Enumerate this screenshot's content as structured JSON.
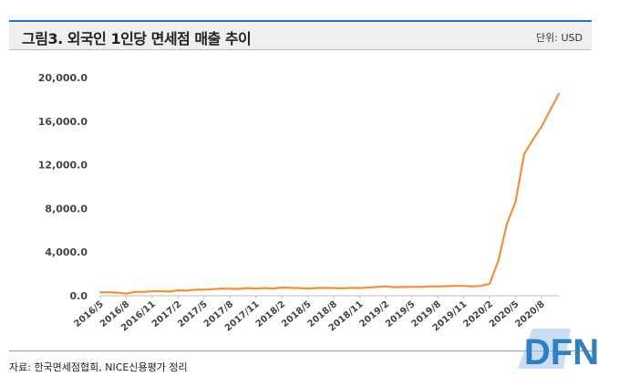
{
  "header": {
    "title": "그림3. 외국인 1인당 면세점 매출 추이",
    "unit": "단위: USD"
  },
  "footer": {
    "source": "자료: 한국면세점협회, NICE신용평가 정리"
  },
  "logo": {
    "text": "DFN",
    "color": "#2f7fc1"
  },
  "chart_data": {
    "type": "line",
    "title": "",
    "xlabel": "",
    "ylabel": "",
    "ylim": [
      0,
      20000
    ],
    "yticks": [
      "0.0",
      "4,000.0",
      "8,000.0",
      "12,000.0",
      "16,000.0",
      "20,000.0"
    ],
    "xtick_labels": [
      "2016/5",
      "2016/8",
      "2016/11",
      "2017/2",
      "2017/5",
      "2017/8",
      "2017/11",
      "2018/2",
      "2018/5",
      "2018/8",
      "2018/11",
      "2019/2",
      "2019/5",
      "2019/8",
      "2019/11",
      "2020/2",
      "2020/5",
      "2020/8"
    ],
    "grid": false,
    "legend": "none",
    "line_color": "#f0913c",
    "series": [
      {
        "x": [
          "2016/5",
          "2016/6",
          "2016/7",
          "2016/8",
          "2016/9",
          "2016/10",
          "2016/11",
          "2016/12",
          "2017/1",
          "2017/2",
          "2017/3",
          "2017/4",
          "2017/5",
          "2017/6",
          "2017/7",
          "2017/8",
          "2017/9",
          "2017/10",
          "2017/11",
          "2017/12",
          "2018/1",
          "2018/2",
          "2018/3",
          "2018/4",
          "2018/5",
          "2018/6",
          "2018/7",
          "2018/8",
          "2018/9",
          "2018/10",
          "2018/11",
          "2018/12",
          "2019/1",
          "2019/2",
          "2019/3",
          "2019/4",
          "2019/5",
          "2019/6",
          "2019/7",
          "2019/8",
          "2019/9",
          "2019/10",
          "2019/11",
          "2019/12",
          "2020/1",
          "2020/2",
          "2020/3",
          "2020/4",
          "2020/5",
          "2020/6",
          "2020/7",
          "2020/8",
          "2020/9",
          "2020/10"
        ],
        "values": [
          300,
          320,
          280,
          200,
          350,
          350,
          400,
          420,
          380,
          500,
          480,
          550,
          560,
          600,
          650,
          640,
          620,
          700,
          650,
          700,
          650,
          750,
          720,
          700,
          650,
          700,
          720,
          700,
          680,
          720,
          700,
          750,
          800,
          850,
          780,
          800,
          820,
          800,
          850,
          850,
          880,
          900,
          900,
          850,
          900,
          1100,
          3200,
          6600,
          8600,
          13000,
          14300,
          15500,
          17000,
          18500
        ]
      }
    ]
  }
}
